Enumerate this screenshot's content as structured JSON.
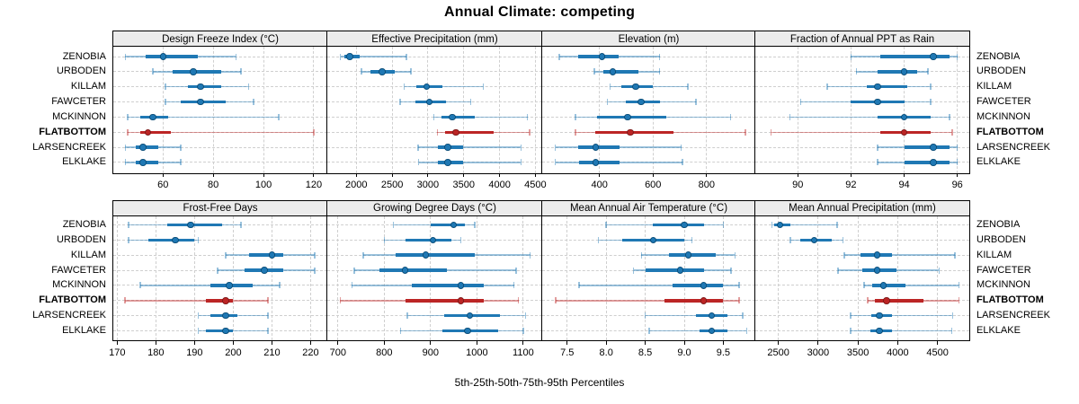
{
  "title": "Annual Climate: competing",
  "caption": "5th-25th-50th-75th-95th Percentiles",
  "sites": [
    "ZENOBIA",
    "URBODEN",
    "KILLAM",
    "FAWCETER",
    "MCKINNON",
    "FLATBOTTOM",
    "LARSENCREEK",
    "ELKLAKE"
  ],
  "highlight_site": "FLATBOTTOM",
  "percentile_labels": [
    "5th",
    "25th",
    "50th",
    "75th",
    "95th"
  ],
  "colors": {
    "series": "#1f78b4",
    "series_edge": "#0d4f7a",
    "series_light": "rgba(31,120,180,0.45)",
    "highlight": "#bc2525",
    "highlight_edge": "#7e1a1a",
    "highlight_light": "rgba(190,40,40,0.45)",
    "grid": "#cfcfcf",
    "strip_bg": "#ececec",
    "border": "#000000"
  },
  "chart_data": {
    "type": "dotplot",
    "layout": "trellis 2 rows x 4 cols, percentile whisker plots per site",
    "title": "Annual Climate: competing",
    "caption": "5th-25th-50th-75th-95th Percentiles",
    "legend_position": "none",
    "grid": "dashed",
    "sites_top_to_bottom": [
      "ZENOBIA",
      "URBODEN",
      "KILLAM",
      "FAWCETER",
      "MCKINNON",
      "FLATBOTTOM",
      "LARSENCREEK",
      "ELKLAKE"
    ],
    "panels": [
      {
        "title": "Design Freeze Index (°C)",
        "row": 0,
        "col": 0,
        "xlim": [
          40.2,
          125.4
        ],
        "ticks": [
          60,
          80,
          100,
          120
        ],
        "tick_labels": [
          "60",
          "80",
          "100",
          "120"
        ],
        "values": [
          [
            45,
            53,
            60,
            74,
            89
          ],
          [
            56,
            64,
            72,
            83,
            91
          ],
          [
            61,
            70,
            75,
            83,
            94
          ],
          [
            61,
            67,
            75,
            85,
            96
          ],
          [
            46,
            51,
            56,
            62,
            106
          ],
          [
            46,
            51,
            54,
            63,
            120
          ],
          [
            45,
            49,
            52,
            58,
            67
          ],
          [
            45,
            49,
            52,
            58,
            67
          ]
        ]
      },
      {
        "title": "Effective Precipitation (mm)",
        "row": 0,
        "col": 1,
        "xlim": [
          1595,
          4595
        ],
        "ticks": [
          2000,
          2500,
          3000,
          3500,
          4000,
          4500
        ],
        "tick_labels": [
          "2000",
          "2500",
          "3000",
          "3500",
          "4000",
          "4500"
        ],
        "values": [
          [
            1780,
            1830,
            1910,
            2050,
            2700
          ],
          [
            2070,
            2200,
            2360,
            2540,
            2760
          ],
          [
            2670,
            2840,
            2980,
            3200,
            3770
          ],
          [
            2610,
            2830,
            3020,
            3250,
            3600
          ],
          [
            3080,
            3190,
            3340,
            3650,
            4390
          ],
          [
            3130,
            3240,
            3390,
            3920,
            4420
          ],
          [
            2860,
            3140,
            3280,
            3490,
            4300
          ],
          [
            2870,
            3140,
            3280,
            3490,
            4300
          ]
        ]
      },
      {
        "title": "Elevation (m)",
        "row": 0,
        "col": 2,
        "xlim": [
          186,
          982
        ],
        "ticks": [
          400,
          600,
          800
        ],
        "tick_labels": [
          "400",
          "600",
          "800"
        ],
        "values": [
          [
            250,
            320,
            410,
            470,
            625
          ],
          [
            380,
            415,
            450,
            545,
            625
          ],
          [
            440,
            480,
            535,
            600,
            730
          ],
          [
            430,
            500,
            555,
            625,
            760
          ],
          [
            310,
            390,
            505,
            650,
            890
          ],
          [
            310,
            385,
            515,
            675,
            945
          ],
          [
            235,
            320,
            385,
            475,
            705
          ],
          [
            235,
            325,
            385,
            475,
            710
          ]
        ]
      },
      {
        "title": "Fraction of Annual PPT as Rain",
        "row": 0,
        "col": 3,
        "xlim": [
          88.4,
          96.45
        ],
        "ticks": [
          90,
          92,
          94,
          96
        ],
        "tick_labels": [
          "90",
          "92",
          "94",
          "96"
        ],
        "values": [
          [
            92.0,
            93.1,
            95.1,
            95.7,
            96.0
          ],
          [
            92.2,
            93.0,
            94.0,
            94.5,
            94.9
          ],
          [
            91.1,
            92.6,
            93.0,
            94.1,
            95.0
          ],
          [
            90.1,
            92.0,
            93.0,
            94.0,
            95.0
          ],
          [
            89.7,
            93.0,
            94.0,
            95.0,
            95.7
          ],
          [
            89.0,
            93.1,
            94.0,
            95.0,
            95.8
          ],
          [
            93.0,
            94.0,
            95.1,
            95.7,
            96.0
          ],
          [
            93.0,
            94.0,
            95.1,
            95.7,
            96.0
          ]
        ]
      },
      {
        "title": "Frost-Free Days",
        "row": 1,
        "col": 0,
        "xlim": [
          169,
          224.3
        ],
        "ticks": [
          170,
          180,
          190,
          200,
          210,
          220
        ],
        "tick_labels": [
          "170",
          "180",
          "190",
          "200",
          "210",
          "220"
        ],
        "values": [
          [
            173,
            183,
            189,
            197,
            202
          ],
          [
            173,
            178,
            185,
            190,
            191
          ],
          [
            198,
            204,
            210,
            213,
            221
          ],
          [
            196,
            203,
            208,
            213,
            221
          ],
          [
            176,
            194,
            199,
            205,
            212
          ],
          [
            172,
            193,
            198,
            200,
            209
          ],
          [
            191,
            194,
            198,
            201,
            209
          ],
          [
            191,
            193,
            198,
            200,
            209
          ]
        ]
      },
      {
        "title": "Growing Degree Days (°C)",
        "row": 1,
        "col": 1,
        "xlim": [
          677,
          1141
        ],
        "ticks": [
          700,
          800,
          900,
          1000,
          1100
        ],
        "tick_labels": [
          "700",
          "800",
          "900",
          "1000",
          "1100"
        ],
        "values": [
          [
            820,
            900,
            950,
            975,
            995
          ],
          [
            800,
            845,
            905,
            945,
            965
          ],
          [
            755,
            825,
            890,
            995,
            1115
          ],
          [
            735,
            790,
            845,
            935,
            1085
          ],
          [
            730,
            860,
            965,
            1015,
            1080
          ],
          [
            705,
            845,
            965,
            1015,
            1090
          ],
          [
            850,
            930,
            985,
            1050,
            1105
          ],
          [
            835,
            925,
            980,
            1045,
            1100
          ]
        ]
      },
      {
        "title": "Mean Annual Air Temperature (°C)",
        "row": 1,
        "col": 2,
        "xlim": [
          7.18,
          9.91
        ],
        "ticks": [
          7.5,
          8.0,
          8.5,
          9.0,
          9.5
        ],
        "tick_labels": [
          "7.5",
          "8.0",
          "8.5",
          "9.0",
          "9.5"
        ],
        "values": [
          [
            8.0,
            8.6,
            9.0,
            9.25,
            9.5
          ],
          [
            7.9,
            8.2,
            8.6,
            9.0,
            9.1
          ],
          [
            8.45,
            8.8,
            9.05,
            9.4,
            9.65
          ],
          [
            8.35,
            8.5,
            8.95,
            9.25,
            9.6
          ],
          [
            7.65,
            8.85,
            9.25,
            9.5,
            9.7
          ],
          [
            7.35,
            8.75,
            9.25,
            9.5,
            9.7
          ],
          [
            8.5,
            9.15,
            9.35,
            9.55,
            9.75
          ],
          [
            8.55,
            9.2,
            9.35,
            9.55,
            9.8
          ]
        ]
      },
      {
        "title": "Mean Annual Precipitation (mm)",
        "row": 1,
        "col": 3,
        "xlim": [
          2210,
          4900
        ],
        "ticks": [
          2500,
          3000,
          3500,
          4000,
          4500
        ],
        "tick_labels": [
          "2500",
          "3000",
          "3500",
          "4000",
          "4500"
        ],
        "values": [
          [
            2420,
            2450,
            2520,
            2650,
            3240
          ],
          [
            2650,
            2780,
            2950,
            3170,
            3310
          ],
          [
            3330,
            3530,
            3740,
            3930,
            4720
          ],
          [
            3250,
            3550,
            3740,
            3980,
            4520
          ],
          [
            3580,
            3680,
            3820,
            4100,
            4770
          ],
          [
            3620,
            3710,
            3860,
            4320,
            4770
          ],
          [
            3410,
            3670,
            3770,
            3930,
            4690
          ],
          [
            3410,
            3660,
            3770,
            3930,
            4680
          ]
        ]
      }
    ]
  }
}
